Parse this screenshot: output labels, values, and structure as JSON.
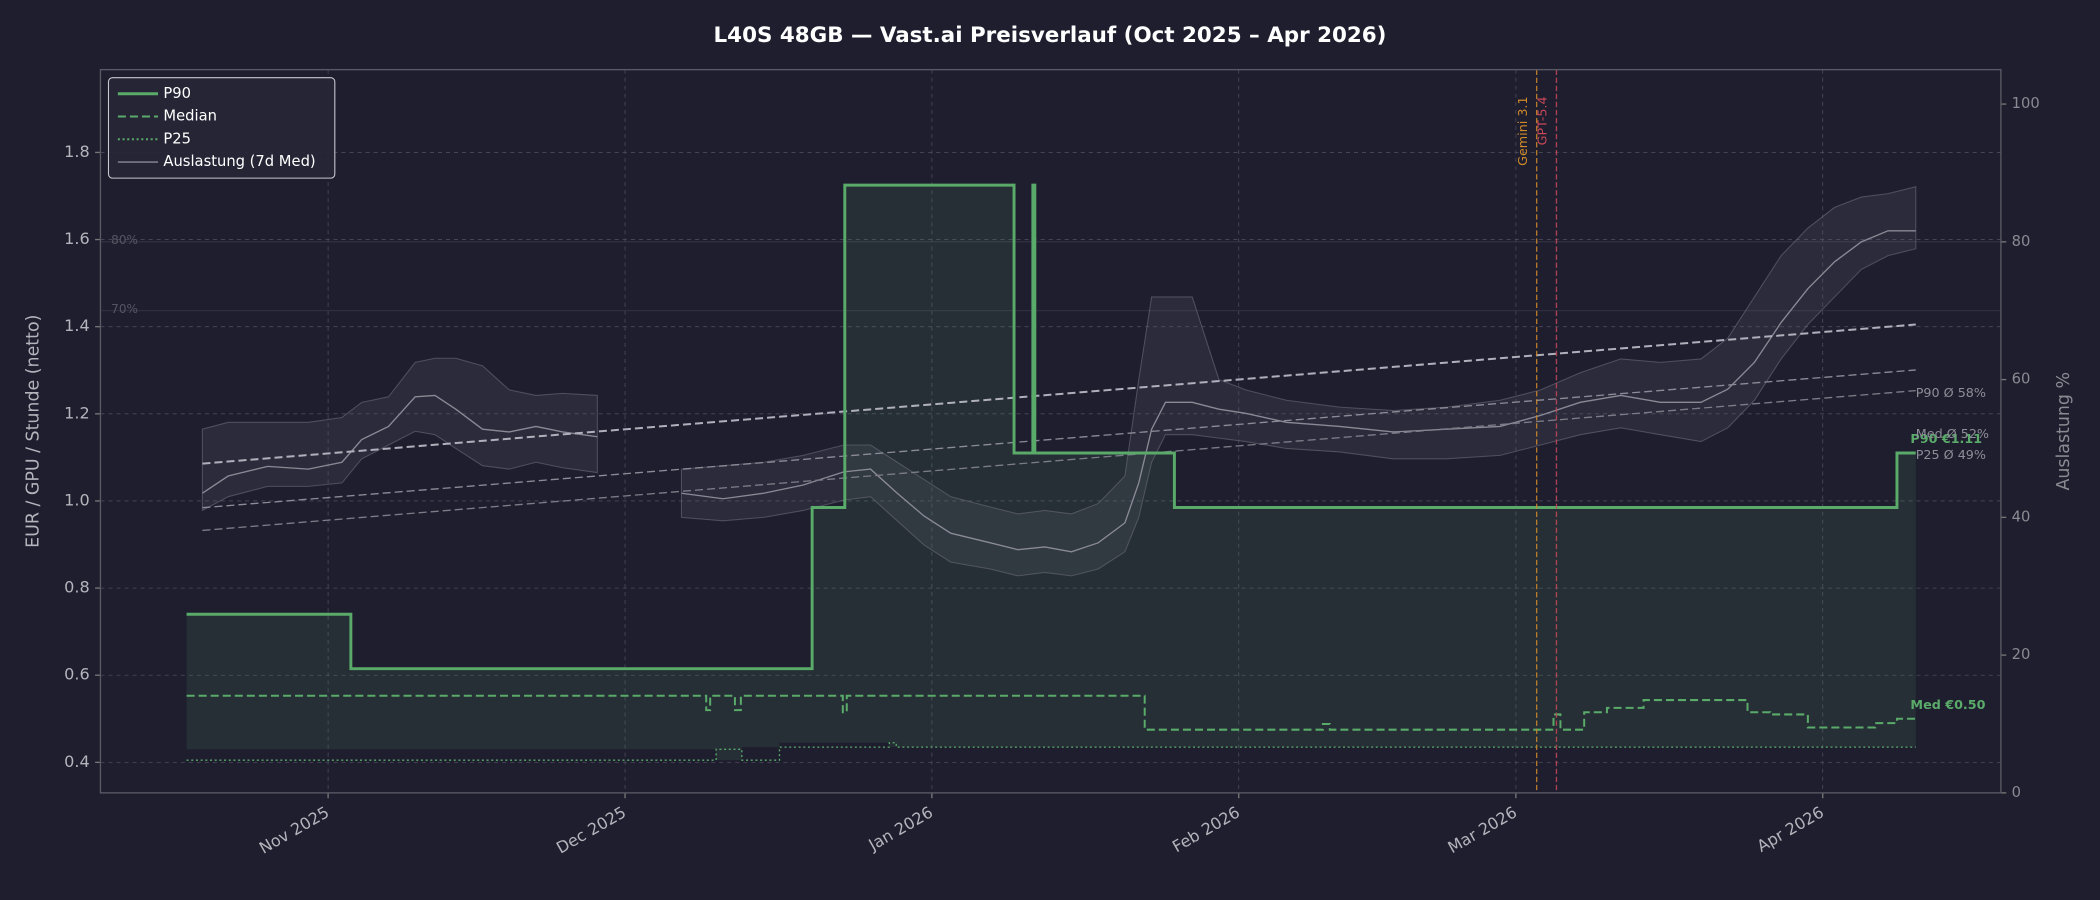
{
  "chart_data": {
    "type": "line",
    "title": "L40S 48GB — Vast.ai Preisverlauf (Oct 2025 – Apr 2026)",
    "ylabel": "EUR / GPU / Stunde (netto)",
    "y2label": "Auslastung %",
    "xlim": [
      0,
      192
    ],
    "xticks": [
      {
        "value": 23,
        "label": "Nov 2025"
      },
      {
        "value": 53,
        "label": "Dec 2025"
      },
      {
        "value": 84,
        "label": "Jan 2026"
      },
      {
        "value": 115,
        "label": "Feb 2026"
      },
      {
        "value": 143,
        "label": "Mar 2026"
      },
      {
        "value": 174,
        "label": "Apr 2026"
      }
    ],
    "ylim": [
      0.33,
      1.99
    ],
    "yticks": [
      0.4,
      0.6,
      0.8,
      {
        "value": 1,
        "label": "1.0"
      },
      1.2,
      1.4,
      1.6,
      1.8
    ],
    "y2lim": [
      0,
      105
    ],
    "y2ticks": [
      0,
      20,
      40,
      60,
      80,
      100
    ],
    "grid": true,
    "legend": "upper left",
    "series": [
      {
        "name": "P90",
        "color": "#5aaa6a",
        "line_style": "solid",
        "drawstyle": "steps-post",
        "fill": true,
        "x": [
          8.7,
          25.3,
          71.9,
          75.2,
          92.3,
          94.2,
          94.4,
          108.5,
          181.5,
          183.4
        ],
        "values": [
          0.74,
          0.615,
          0.985,
          1.725,
          1.11,
          1.725,
          1.11,
          0.985,
          1.11,
          1.11
        ],
        "end_label": "P90 €1.11"
      },
      {
        "name": "Median",
        "color": "#5aaa6a",
        "line_style": "dashed",
        "drawstyle": "steps-post",
        "x": [
          8.7,
          61.2,
          61.6,
          64.1,
          64.7,
          75.0,
          75.4,
          105.5,
          123.5,
          124.2,
          146.1,
          146.8,
          147.5,
          149.9,
          152.2,
          155.9,
          166.4,
          168.7,
          172.5,
          179.3,
          181.5,
          183.4
        ],
        "values": [
          0.553,
          0.52,
          0.553,
          0.52,
          0.553,
          0.515,
          0.553,
          0.475,
          0.488,
          0.475,
          0.475,
          0.51,
          0.475,
          0.515,
          0.525,
          0.543,
          0.515,
          0.51,
          0.48,
          0.49,
          0.5,
          0.5
        ],
        "end_label": "Med €0.50"
      },
      {
        "name": "P25",
        "color": "#5aaa6a",
        "line_style": "dotted",
        "drawstyle": "steps-post",
        "x": [
          8.7,
          62.2,
          64.8,
          68.6,
          79.7,
          80.4,
          183.4
        ],
        "values": [
          0.405,
          0.43,
          0.405,
          0.435,
          0.445,
          0.435,
          0.435
        ]
      },
      {
        "name": "Auslastung (7d Med)",
        "color": "#8a8a96",
        "line_style": "solid",
        "axis": "y2",
        "x": [
          10.3,
          12.9,
          16.9,
          21.0,
          24.4,
          26.4,
          29.1,
          31.8,
          33.8,
          35.9,
          38.6,
          41.3,
          44.0,
          46.7,
          50.2,
          null,
          58.7,
          62.9,
          67.0,
          71.0,
          75.1,
          77.8,
          80.5,
          83.2,
          85.9,
          89.9,
          92.7,
          95.4,
          98.1,
          100.8,
          103.5,
          104.9,
          106.2,
          107.6,
          110.3,
          113.0,
          115.7,
          119.8,
          125.2,
          130.6,
          136.0,
          141.4,
          145.5,
          149.5,
          153.6,
          157.6,
          161.7,
          164.4,
          167.1,
          169.8,
          172.5,
          175.2,
          177.9,
          180.6,
          183.4
        ],
        "values": [
          43.5,
          46.0,
          47.4,
          47.0,
          48.0,
          51.3,
          53.2,
          57.5,
          57.7,
          55.7,
          52.8,
          52.4,
          53.2,
          52.4,
          51.7,
          null,
          43.5,
          42.7,
          43.5,
          44.7,
          46.6,
          47.0,
          43.5,
          40.2,
          37.7,
          36.3,
          35.3,
          35.7,
          35.0,
          36.3,
          39.2,
          45.0,
          52.8,
          56.7,
          56.7,
          55.7,
          55.1,
          53.8,
          53.2,
          52.4,
          52.8,
          53.2,
          54.8,
          56.7,
          57.7,
          56.7,
          56.7,
          58.6,
          62.5,
          68.3,
          73.2,
          77.1,
          80.0,
          81.6,
          81.6
        ],
        "upper": [
          52.8,
          53.8,
          53.8,
          53.8,
          54.5,
          56.7,
          57.5,
          62.5,
          63.1,
          63.1,
          62.0,
          58.5,
          57.7,
          58.0,
          57.7,
          null,
          47.0,
          47.5,
          48.0,
          49.0,
          50.5,
          50.5,
          48.0,
          45.5,
          43.0,
          41.5,
          40.5,
          41.0,
          40.5,
          42.0,
          46.0,
          60.0,
          72.0,
          72.0,
          72.0,
          60.0,
          58.5,
          57.0,
          56.0,
          55.5,
          56.0,
          57.0,
          58.5,
          61.0,
          63.0,
          62.5,
          63.0,
          66.0,
          72.0,
          78.0,
          82.0,
          85.0,
          86.5,
          87.0,
          88.0
        ],
        "lower": [
          41.0,
          43.0,
          44.5,
          44.5,
          45.0,
          48.5,
          50.5,
          52.5,
          52.0,
          50.0,
          47.5,
          47.0,
          48.0,
          47.2,
          46.5,
          null,
          40.0,
          39.5,
          40.0,
          41.0,
          42.5,
          43.0,
          39.5,
          36.0,
          33.5,
          32.5,
          31.5,
          32.0,
          31.5,
          32.5,
          35.0,
          40.0,
          48.0,
          52.0,
          52.0,
          51.5,
          51.0,
          50.0,
          49.5,
          48.5,
          48.5,
          49.0,
          50.5,
          52.0,
          53.0,
          52.0,
          51.0,
          53.0,
          57.0,
          63.0,
          68.0,
          72.0,
          76.0,
          78.0,
          79.0
        ]
      }
    ],
    "trend_lines": [
      {
        "color": "#b0b0bc",
        "axis": "y2",
        "x": [
          10.3,
          183.4
        ],
        "values": [
          47.8,
          68.0
        ]
      },
      {
        "color": "#8c8c98",
        "axis": "y2",
        "x": [
          10.3,
          183.4
        ],
        "values": [
          41.4,
          61.4
        ]
      },
      {
        "color": "#7c7c88",
        "axis": "y2",
        "x": [
          10.3,
          183.4
        ],
        "values": [
          38.1,
          58.4
        ]
      }
    ],
    "trend_labels": [
      {
        "text": "P90 Ø 58%",
        "value": 58
      },
      {
        "text": "Med Ø 52%",
        "value": 52
      },
      {
        "text": "P25 Ø 49%",
        "value": 49
      }
    ],
    "ref_lines": [
      {
        "value": 80,
        "label": "80%"
      },
      {
        "value": 70,
        "label": "70%"
      }
    ],
    "events": [
      {
        "x": 145.1,
        "label": "Gemini 3.1",
        "color": "#d08a2a"
      },
      {
        "x": 147.1,
        "label": "GPT-5.4",
        "color": "#c8485a"
      }
    ]
  }
}
